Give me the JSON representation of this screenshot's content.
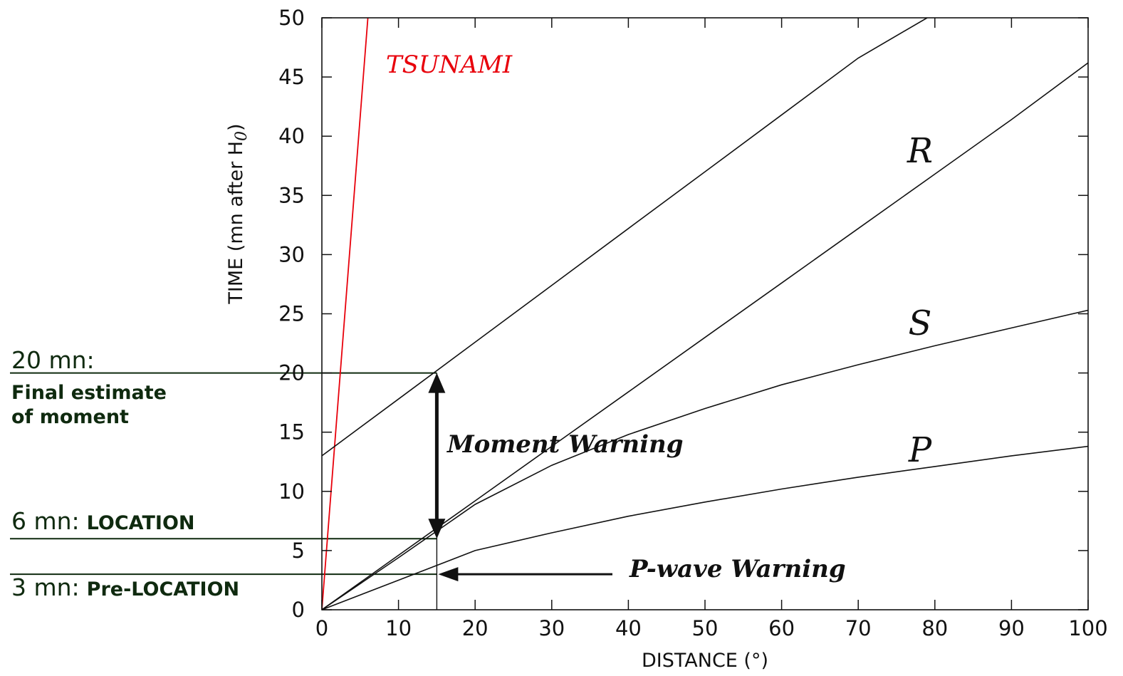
{
  "chart_data": {
    "type": "line",
    "xlabel": "DISTANCE (°)",
    "ylabel": "TIME (mn after H",
    "ylabel_subscript": "0",
    "ylabel_close": ")",
    "xlim": [
      0,
      100
    ],
    "ylim": [
      0,
      50
    ],
    "x_ticks": [
      "0",
      "10",
      "20",
      "30",
      "40",
      "50",
      "60",
      "70",
      "80",
      "90",
      "100"
    ],
    "y_ticks": [
      "0",
      "5",
      "10",
      "15",
      "20",
      "25",
      "30",
      "35",
      "40",
      "45",
      "50"
    ],
    "grid": false,
    "series": [
      {
        "name": "TSUNAMI",
        "color": "#e8000b",
        "x": [
          0,
          6.0
        ],
        "y": [
          0,
          50
        ]
      },
      {
        "name": "",
        "color": "#111111",
        "x": [
          0,
          10,
          20,
          30,
          40,
          50,
          60,
          70,
          79
        ],
        "y": [
          13,
          17.8,
          22.6,
          27.4,
          32.2,
          37.0,
          41.8,
          46.6,
          50
        ]
      },
      {
        "name": "R",
        "color": "#111111",
        "x": [
          0,
          10,
          20,
          30,
          40,
          50,
          60,
          70,
          80,
          90,
          100
        ],
        "y": [
          0,
          4.6,
          9.2,
          13.8,
          18.4,
          23.0,
          27.6,
          32.2,
          36.8,
          41.4,
          46.2
        ]
      },
      {
        "name": "S",
        "color": "#111111",
        "x": [
          0,
          10,
          20,
          30,
          40,
          50,
          60,
          70,
          80,
          90,
          100
        ],
        "y": [
          0,
          4.4,
          8.9,
          12.2,
          14.8,
          17.0,
          19.0,
          20.7,
          22.3,
          23.8,
          25.3
        ]
      },
      {
        "name": "P",
        "color": "#111111",
        "x": [
          0,
          10,
          20,
          30,
          40,
          50,
          60,
          70,
          80,
          90,
          100
        ],
        "y": [
          0,
          2.5,
          5.0,
          6.5,
          7.9,
          9.1,
          10.2,
          11.2,
          12.1,
          13.0,
          13.8
        ]
      }
    ],
    "annotations": {
      "tsunami": "TSUNAMI",
      "moment_warning": "Moment Warning",
      "p_wave_warning": "P-wave Warning",
      "note_20": "20 mn:",
      "note_20_desc_1": "Final estimate",
      "note_20_desc_2": "of moment",
      "note_6": "6 mn:",
      "note_6_desc": "LOCATION",
      "note_3": "3 mn:",
      "note_3_desc": "Pre-LOCATION"
    },
    "reference_times_mn": [
      20,
      6,
      3
    ],
    "vertical_marker_distance": 15,
    "colors": {
      "note_lines": "#0f2a0f",
      "tsunami": "#e8000b",
      "curves": "#111111"
    }
  }
}
